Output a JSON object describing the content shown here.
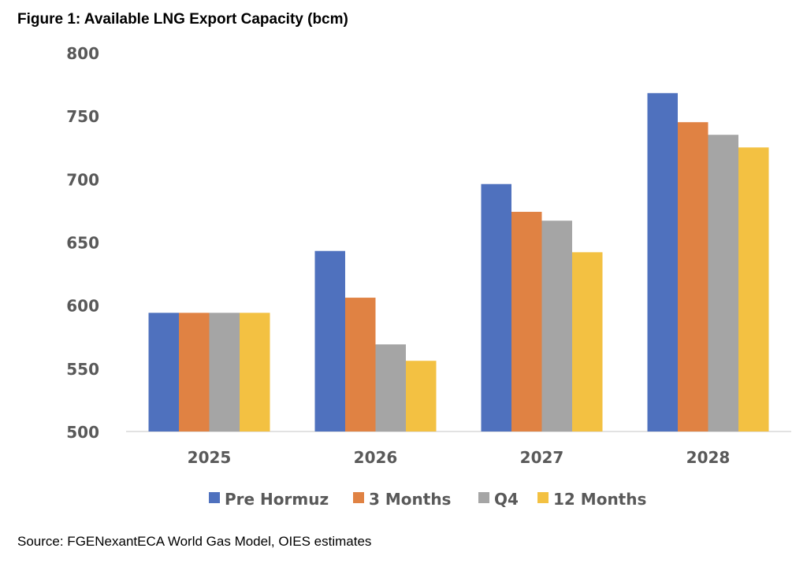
{
  "chart_data": {
    "type": "bar",
    "title": "Figure 1: Available LNG Export Capacity (bcm)",
    "source": "Source: FGENexantECA World Gas Model, OIES estimates",
    "categories": [
      "2025",
      "2026",
      "2027",
      "2028"
    ],
    "ylim": [
      500,
      800
    ],
    "yticks": [
      500,
      550,
      600,
      650,
      700,
      750,
      800
    ],
    "grid": false,
    "legend_position": "bottom",
    "series": [
      {
        "name": "Pre Hormuz",
        "color": "#4f71be",
        "values": [
          594,
          643,
          696,
          768
        ]
      },
      {
        "name": "3 Months",
        "color": "#e08243",
        "values": [
          594,
          606,
          674,
          745
        ]
      },
      {
        "name": "Q4",
        "color": "#a5a5a5",
        "values": [
          594,
          569,
          667,
          735
        ]
      },
      {
        "name": "12 Months",
        "color": "#f3c142",
        "values": [
          594,
          556,
          642,
          725
        ]
      }
    ]
  }
}
